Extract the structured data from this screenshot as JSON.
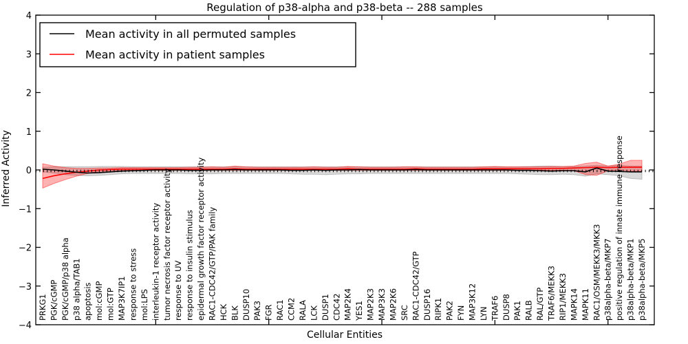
{
  "chart_data": {
    "type": "line",
    "title": "Regulation of p38-alpha and p38-beta -- 288 samples",
    "xlabel": "Cellular Entities",
    "ylabel": "Inferred Activity",
    "ylim": [
      -4,
      4
    ],
    "yticks": [
      4,
      3,
      2,
      1,
      0,
      -1,
      -2,
      -3,
      -4
    ],
    "xtick_indices": [
      10,
      20,
      30,
      40,
      50
    ],
    "grid": false,
    "legend_position": "upper left",
    "zero_line": true,
    "categories": [
      "PRKG1",
      "PGK/cGMP",
      "PGK/cGMP/p38 alpha",
      "p38 alpha/TAB1",
      "apoptosis",
      "mol:cGMP",
      "mol:GTP",
      "MAP3K7IP1",
      "response to stress",
      "mol:LPS",
      "interleukin-1 receptor activity",
      "tumor necrosis factor receptor activity",
      "response to UV",
      "response to insulin stimulus",
      "epidermal growth factor receptor activity",
      "RAC1-CDC42/GTP/PAK family",
      "HCK",
      "BLK",
      "DUSP10",
      "PAK3",
      "FGR",
      "RAC1",
      "CCM2",
      "RALA",
      "LCK",
      "DUSP1",
      "CDC42",
      "MAP2K4",
      "YES1",
      "MAP2K3",
      "MAP3K3",
      "MAP2K6",
      "SRC",
      "RAC1-CDC42/GTP",
      "DUSP16",
      "RIPK1",
      "PAK2",
      "FYN",
      "MAP3K12",
      "LYN",
      "TRAF6",
      "DUSP8",
      "PAK1",
      "RALB",
      "RAL/GTP",
      "TRAF6/MEKK3",
      "RIP1/MEKK3",
      "MAPK14",
      "MAPK11",
      "RAC1/OSM/MEKK3/MKK3",
      "p38alpha-beta/MKP7",
      "positive regulation of innate immune response",
      "p38alpha-beta/MKP1",
      "p38alpha-beta/MKP5"
    ],
    "series": [
      {
        "name": "Mean activity in all permuted samples",
        "color": "#000000",
        "values": [
          0.02,
          0.0,
          -0.03,
          -0.06,
          -0.08,
          -0.07,
          -0.05,
          -0.03,
          -0.02,
          -0.01,
          0,
          0,
          0,
          -0.01,
          -0.01,
          0,
          0,
          0.01,
          0,
          0,
          0,
          0,
          -0.01,
          -0.01,
          0,
          -0.01,
          0,
          0,
          0.01,
          0,
          0,
          0,
          0,
          0.01,
          0,
          0,
          0,
          0,
          0,
          0,
          0,
          0,
          -0.01,
          -0.01,
          -0.02,
          -0.03,
          -0.02,
          -0.02,
          -0.05,
          0.05,
          -0.03,
          -0.04,
          -0.05,
          -0.05
        ]
      },
      {
        "name": "Mean activity in patient samples",
        "color": "#ff0000",
        "values": [
          -0.22,
          -0.15,
          -0.1,
          -0.06,
          -0.03,
          0.0,
          0.01,
          0.02,
          0.02,
          0.02,
          0.02,
          0.02,
          0.02,
          0.02,
          0.02,
          0.02,
          0.02,
          0.03,
          0.02,
          0.02,
          0.02,
          0.02,
          0.02,
          0.02,
          0.02,
          0.02,
          0.02,
          0.03,
          0.02,
          0.02,
          0.02,
          0.02,
          0.02,
          0.03,
          0.02,
          0.02,
          0.02,
          0.02,
          0.02,
          0.03,
          0.03,
          0.03,
          0.03,
          0.03,
          0.03,
          0.04,
          0.04,
          0.05,
          0.06,
          0.07,
          0.06,
          0.07,
          0.07,
          0.07
        ]
      }
    ],
    "bands": [
      {
        "name": "permuted-confidence-band",
        "fill": "rgba(128,128,128,0.30)",
        "edge": "rgba(128,128,128,0.45)",
        "upper": [
          0.07,
          0.08,
          0.08,
          0.08,
          0.08,
          0.09,
          0.09,
          0.09,
          0.08,
          0.08,
          0.08,
          0.08,
          0.08,
          0.08,
          0.08,
          0.08,
          0.08,
          0.08,
          0.08,
          0.08,
          0.08,
          0.08,
          0.08,
          0.08,
          0.08,
          0.08,
          0.08,
          0.08,
          0.08,
          0.08,
          0.08,
          0.08,
          0.08,
          0.08,
          0.08,
          0.08,
          0.08,
          0.08,
          0.08,
          0.08,
          0.08,
          0.08,
          0.08,
          0.09,
          0.1,
          0.1,
          0.09,
          0.09,
          0.1,
          0.12,
          0.1,
          0.12,
          0.1,
          0.1
        ],
        "lower": [
          -0.05,
          -0.08,
          -0.12,
          -0.14,
          -0.15,
          -0.14,
          -0.12,
          -0.1,
          -0.09,
          -0.09,
          -0.09,
          -0.09,
          -0.09,
          -0.1,
          -0.1,
          -0.1,
          -0.09,
          -0.09,
          -0.09,
          -0.09,
          -0.09,
          -0.09,
          -0.1,
          -0.11,
          -0.11,
          -0.12,
          -0.11,
          -0.1,
          -0.1,
          -0.09,
          -0.09,
          -0.09,
          -0.09,
          -0.09,
          -0.09,
          -0.09,
          -0.09,
          -0.09,
          -0.09,
          -0.09,
          -0.09,
          -0.09,
          -0.1,
          -0.11,
          -0.12,
          -0.12,
          -0.11,
          -0.12,
          -0.16,
          -0.1,
          -0.12,
          -0.15,
          -0.22,
          -0.24
        ]
      },
      {
        "name": "patient-confidence-band",
        "fill": "rgba(255,0,0,0.30)",
        "edge": "rgba(255,0,0,0.45)",
        "upper": [
          0.16,
          0.1,
          0.06,
          0.04,
          0.04,
          0.05,
          0.05,
          0.06,
          0.06,
          0.06,
          0.06,
          0.06,
          0.06,
          0.07,
          0.07,
          0.08,
          0.07,
          0.1,
          0.08,
          0.07,
          0.07,
          0.07,
          0.07,
          0.07,
          0.08,
          0.07,
          0.07,
          0.09,
          0.08,
          0.07,
          0.07,
          0.07,
          0.08,
          0.08,
          0.07,
          0.07,
          0.07,
          0.07,
          0.07,
          0.08,
          0.09,
          0.08,
          0.08,
          0.08,
          0.08,
          0.09,
          0.09,
          0.1,
          0.17,
          0.2,
          0.1,
          0.15,
          0.25,
          0.25
        ],
        "lower": [
          -0.47,
          -0.35,
          -0.25,
          -0.16,
          -0.09,
          -0.04,
          -0.02,
          -0.01,
          -0.01,
          -0.01,
          -0.01,
          -0.01,
          -0.01,
          -0.01,
          -0.01,
          -0.01,
          -0.01,
          -0.01,
          -0.01,
          -0.01,
          -0.01,
          -0.01,
          -0.01,
          -0.01,
          -0.01,
          -0.01,
          -0.01,
          -0.01,
          -0.01,
          -0.01,
          -0.01,
          -0.01,
          -0.01,
          -0.01,
          -0.01,
          -0.01,
          -0.01,
          -0.01,
          -0.01,
          -0.01,
          -0.01,
          -0.01,
          -0.01,
          -0.01,
          -0.01,
          -0.01,
          -0.01,
          -0.02,
          -0.12,
          -0.14,
          -0.02,
          0.0,
          -0.03,
          -0.03
        ]
      }
    ]
  }
}
